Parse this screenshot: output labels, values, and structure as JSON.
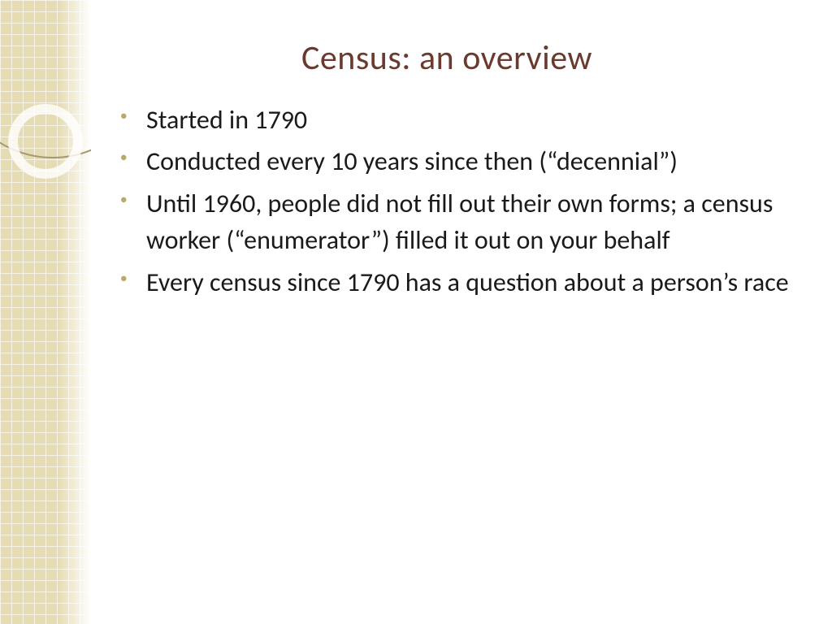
{
  "slide": {
    "title": "Census: an overview",
    "bullets": [
      "Started in 1790",
      "Conducted every 10 years since then (“decennial”)",
      "Until 1960, people did not fill out their own forms; a census worker (“enumerator”) filled it out on your behalf",
      "Every census since 1790 has a question about a person’s race"
    ]
  },
  "style": {
    "title_color": "#6b3a2e",
    "title_fontsize": 42,
    "body_color": "#1a1a1a",
    "body_fontsize": 32,
    "bullet_color": "#b9a96f",
    "sidebar_grid_color": "#e6dcb4",
    "sidebar_grid_line_color": "#ffffff",
    "arc_color": "#a59a6f",
    "ring_color": "#ffffff",
    "background_color": "#ffffff"
  }
}
